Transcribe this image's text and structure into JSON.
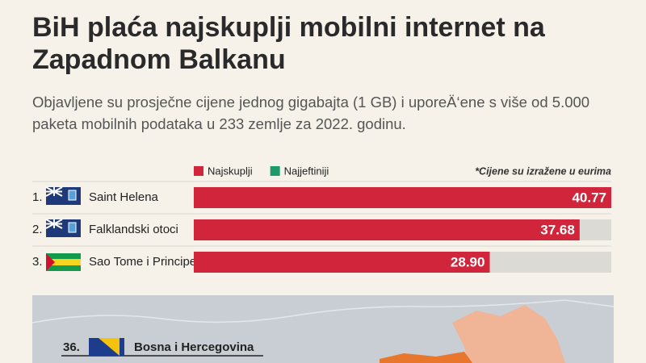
{
  "chart_data": {
    "type": "hbar",
    "title": "BiH plaća najskuplji mobilni internet na Zapadnom Balkanu",
    "subtitle": "Objavljene su prosječne cijene jednog gigabajta (1 GB) i uporeÄ‘ene s više od 5.000 paketa mobilnih podataka u 233 zemlje za 2022. godinu.",
    "note": "*Cijene su izražene u eurima",
    "legend": [
      {
        "name": "Najskuplji",
        "color": "#d0253a"
      },
      {
        "name": "Najjeftiniji",
        "color": "#1e9a6a"
      }
    ],
    "ranks": [
      "1.",
      "2.",
      "3."
    ],
    "categories": [
      "Saint Helena",
      "Falklandski otoci",
      "Sao Tome i Principe"
    ],
    "values": [
      40.77,
      37.68,
      28.9
    ],
    "value_labels": [
      "40.77",
      "37.68",
      "28.90"
    ],
    "color": "#d0253a",
    "xlim": [
      0,
      40.77
    ],
    "map_label": {
      "rank": "36.",
      "name": "Bosna i Hercegovina"
    }
  }
}
